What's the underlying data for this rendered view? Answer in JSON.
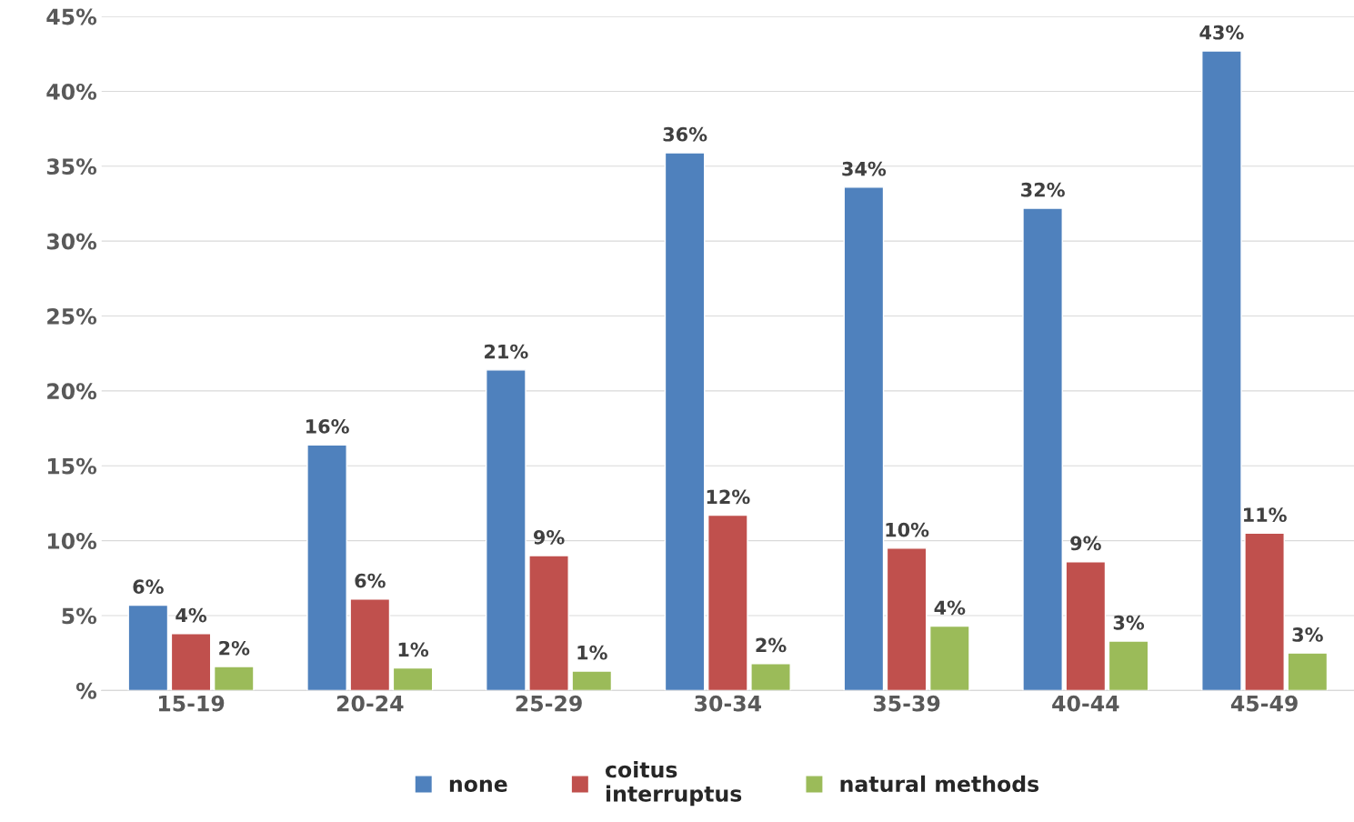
{
  "chart_data": {
    "type": "bar",
    "categories": [
      "15-19",
      "20-24",
      "25-29",
      "30-34",
      "35-39",
      "40-44",
      "45-49"
    ],
    "series": [
      {
        "name": "none",
        "color": "#4f81bd",
        "values": [
          5.7,
          16.4,
          21.4,
          35.9,
          33.6,
          32.2,
          42.7
        ],
        "value_labels": [
          "6%",
          "16%",
          "21%",
          "36%",
          "34%",
          "32%",
          "43%"
        ]
      },
      {
        "name": "coitus\ninterruptus",
        "color": "#c0504d",
        "values": [
          3.8,
          6.1,
          9.0,
          11.7,
          9.5,
          8.6,
          10.5
        ],
        "value_labels": [
          "4%",
          "6%",
          "9%",
          "12%",
          "10%",
          "9%",
          "11%"
        ]
      },
      {
        "name": "natural methods",
        "color": "#9bbb59",
        "values": [
          1.6,
          1.5,
          1.3,
          1.8,
          4.3,
          3.3,
          2.5
        ],
        "value_labels": [
          "2%",
          "1%",
          "1%",
          "2%",
          "4%",
          "3%",
          "3%"
        ]
      }
    ],
    "ylim": [
      0,
      45
    ],
    "yticks": [
      {
        "value": 0,
        "label": "%"
      },
      {
        "value": 5,
        "label": "5%"
      },
      {
        "value": 10,
        "label": "10%"
      },
      {
        "value": 15,
        "label": "15%"
      },
      {
        "value": 20,
        "label": "20%"
      },
      {
        "value": 25,
        "label": "25%"
      },
      {
        "value": 30,
        "label": "30%"
      },
      {
        "value": 35,
        "label": "35%"
      },
      {
        "value": 40,
        "label": "40%"
      },
      {
        "value": 45,
        "label": "45%"
      }
    ],
    "grid": "y",
    "legend": "bottom"
  }
}
